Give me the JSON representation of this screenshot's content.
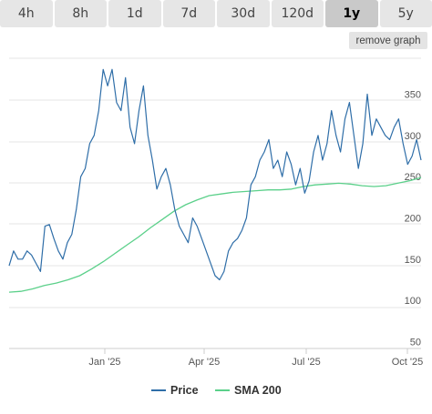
{
  "range_buttons": [
    {
      "label": "4h",
      "active": false
    },
    {
      "label": "8h",
      "active": false
    },
    {
      "label": "1d",
      "active": false
    },
    {
      "label": "7d",
      "active": false
    },
    {
      "label": "30d",
      "active": false
    },
    {
      "label": "120d",
      "active": false
    },
    {
      "label": "1y",
      "active": true
    },
    {
      "label": "5y",
      "active": false
    }
  ],
  "remove_graph_label": "remove graph",
  "chart_data": {
    "type": "line",
    "x_tick_labels": [
      "Jan '25",
      "Apr '25",
      "Jul '25",
      "Oct '25"
    ],
    "y_tick_labels": [
      "50",
      "100",
      "150",
      "200",
      "250",
      "300",
      "350"
    ],
    "ylim": [
      50,
      360
    ],
    "grid": true,
    "legend_position": "bottom",
    "series": [
      {
        "name": "Price",
        "color": "#2f6ea8",
        "values": [
          142,
          160,
          150,
          150,
          160,
          155,
          145,
          135,
          190,
          192,
          175,
          160,
          150,
          170,
          180,
          210,
          250,
          260,
          290,
          300,
          330,
          380,
          360,
          380,
          340,
          330,
          370,
          310,
          290,
          330,
          360,
          300,
          270,
          235,
          250,
          260,
          240,
          210,
          190,
          180,
          170,
          200,
          190,
          175,
          160,
          145,
          130,
          125,
          135,
          160,
          170,
          175,
          185,
          200,
          240,
          250,
          270,
          280,
          295,
          260,
          270,
          250,
          280,
          265,
          240,
          260,
          230,
          245,
          280,
          300,
          270,
          290,
          330,
          300,
          280,
          320,
          340,
          300,
          260,
          290,
          350,
          300,
          320,
          310,
          300,
          295,
          310,
          320,
          290,
          265,
          275,
          295,
          270
        ]
      },
      {
        "name": "SMA 200",
        "color": "#5bd08a",
        "values": [
          110,
          111,
          114,
          118,
          121,
          125,
          130,
          138,
          147,
          157,
          167,
          177,
          188,
          198,
          208,
          216,
          222,
          227,
          229,
          231,
          232,
          233,
          234,
          234,
          235,
          238,
          240,
          241,
          242,
          241,
          239,
          238,
          239,
          242,
          245,
          249
        ]
      }
    ]
  }
}
